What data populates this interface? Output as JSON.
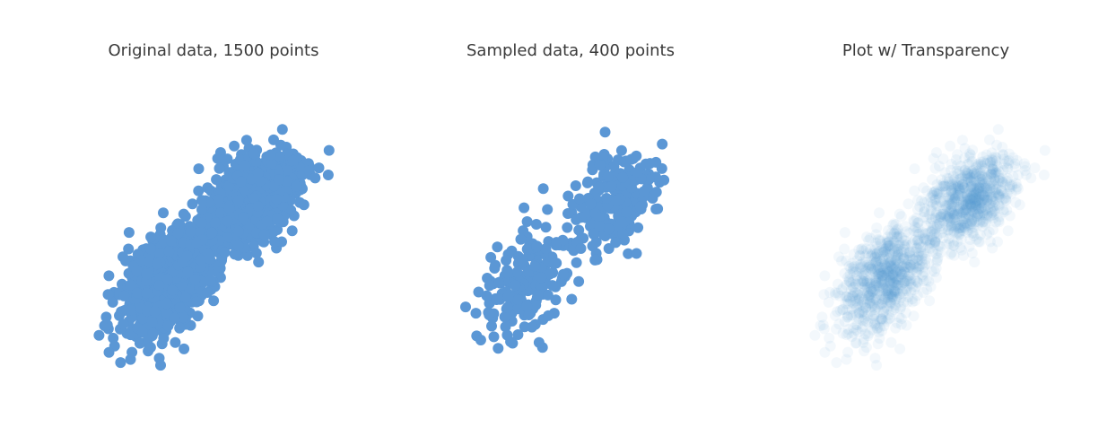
{
  "figure": {
    "marker_color": "#5b97d5",
    "background": "#ffffff"
  },
  "chart_data": [
    {
      "type": "scatter",
      "title": "Original data, 1500 points",
      "point_count": 1500,
      "opacity": 1.0,
      "xlim": [
        -3.5,
        3.5
      ],
      "ylim": [
        -3.5,
        3.8
      ],
      "axes_visible": false,
      "grid": false,
      "legend": "none",
      "distribution": {
        "clusters": [
          {
            "x_mean": -1.1,
            "y_mean": -1.0,
            "x_sd": 0.55,
            "y_sd": 0.65,
            "correlation": 0.45,
            "weight": 0.5
          },
          {
            "x_mean": 1.0,
            "y_mean": 0.95,
            "x_sd": 0.55,
            "y_sd": 0.55,
            "correlation": 0.35,
            "weight": 0.5
          }
        ]
      },
      "seed": 101
    },
    {
      "type": "scatter",
      "title": "Sampled data, 400 points",
      "point_count": 400,
      "opacity": 1.0,
      "xlim": [
        -3.5,
        3.5
      ],
      "ylim": [
        -3.5,
        3.8
      ],
      "axes_visible": false,
      "grid": false,
      "legend": "none",
      "distribution": {
        "clusters": [
          {
            "x_mean": -1.1,
            "y_mean": -1.0,
            "x_sd": 0.55,
            "y_sd": 0.65,
            "correlation": 0.45,
            "weight": 0.5
          },
          {
            "x_mean": 1.0,
            "y_mean": 0.95,
            "x_sd": 0.55,
            "y_sd": 0.55,
            "correlation": 0.35,
            "weight": 0.5
          }
        ]
      },
      "seed": 202
    },
    {
      "type": "scatter",
      "title": "Plot w/ Transparency",
      "point_count": 1500,
      "opacity": 0.07,
      "xlim": [
        -3.5,
        3.5
      ],
      "ylim": [
        -3.5,
        3.8
      ],
      "axes_visible": false,
      "grid": false,
      "legend": "none",
      "distribution": {
        "clusters": [
          {
            "x_mean": -1.1,
            "y_mean": -1.0,
            "x_sd": 0.55,
            "y_sd": 0.65,
            "correlation": 0.45,
            "weight": 0.5
          },
          {
            "x_mean": 1.0,
            "y_mean": 0.95,
            "x_sd": 0.55,
            "y_sd": 0.55,
            "correlation": 0.35,
            "weight": 0.5
          }
        ]
      },
      "seed": 101
    }
  ]
}
